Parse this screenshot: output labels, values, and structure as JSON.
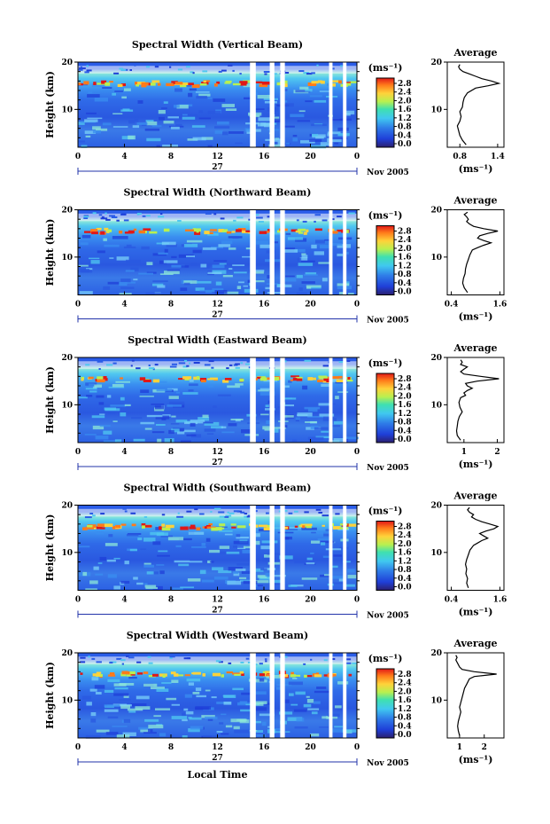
{
  "chart_data": [
    {
      "type": "heatmap",
      "title": "Spectral Width (Vertical Beam)",
      "ylabel": "Height (km)",
      "yticks": [
        "20",
        "10"
      ],
      "ylim": [
        2,
        20
      ],
      "xticks": [
        "0",
        "4",
        "8",
        "12",
        "16",
        "20",
        "0"
      ],
      "xlim": [
        0,
        24
      ],
      "day": "27",
      "date_label": "Nov 2005",
      "gaps": [
        [
          14.8,
          15.3
        ],
        [
          16.5,
          16.9
        ],
        [
          17.4,
          17.8
        ],
        [
          21.6,
          21.9
        ],
        [
          22.8,
          23.1
        ]
      ],
      "colorbar": {
        "label": "(ms⁻¹)",
        "ticks": [
          "2.8",
          "2.4",
          "2.0",
          "1.6",
          "1.2",
          "0.8",
          "0.4",
          "0.0"
        ]
      },
      "average": {
        "title": "Average",
        "xlabel": "(ms⁻¹)",
        "xticks": [
          "0.8",
          "1.4"
        ],
        "xtick_values": [
          0.8,
          1.4
        ],
        "xlim": [
          0.6,
          1.5
        ],
        "yticks": [
          "20",
          "10"
        ],
        "height": [
          2.5,
          3.5,
          4.5,
          5.5,
          6.5,
          7.5,
          8.5,
          9.5,
          10.5,
          11.5,
          12.5,
          13.5,
          14.5,
          15.0,
          15.5,
          16.0,
          16.5,
          17.0,
          17.5,
          18.0,
          18.5,
          19.0,
          19.5
        ],
        "value": [
          0.9,
          0.84,
          0.8,
          0.78,
          0.76,
          0.8,
          0.82,
          0.8,
          0.84,
          0.85,
          0.87,
          0.92,
          1.05,
          1.25,
          1.42,
          1.3,
          1.15,
          1.05,
          0.95,
          0.85,
          0.8,
          0.78,
          0.8
        ]
      }
    },
    {
      "type": "heatmap",
      "title": "Spectral Width (Northward Beam)",
      "ylabel": "Height (km)",
      "yticks": [
        "20",
        "10"
      ],
      "ylim": [
        2,
        20
      ],
      "xticks": [
        "0",
        "4",
        "8",
        "12",
        "16",
        "20",
        "0"
      ],
      "xlim": [
        0,
        24
      ],
      "day": "27",
      "date_label": "Nov 2005",
      "gaps": [
        [
          14.8,
          15.3
        ],
        [
          16.5,
          16.9
        ],
        [
          17.4,
          17.8
        ],
        [
          21.6,
          21.9
        ],
        [
          22.8,
          23.1
        ]
      ],
      "colorbar": {
        "label": "(ms⁻¹)",
        "ticks": [
          "2.8",
          "2.4",
          "2.0",
          "1.6",
          "1.2",
          "0.8",
          "0.4",
          "0.0"
        ]
      },
      "average": {
        "title": "Average",
        "xlabel": "(ms⁻¹)",
        "xticks": [
          "0.4",
          "1.6"
        ],
        "xtick_values": [
          0.4,
          1.6
        ],
        "xlim": [
          0.3,
          1.7
        ],
        "yticks": [
          "20",
          "10"
        ],
        "height": [
          2.5,
          3.5,
          4.5,
          5.5,
          6.5,
          7.5,
          8.5,
          9.5,
          10.5,
          11.5,
          12.0,
          12.5,
          13.0,
          13.5,
          14.0,
          14.5,
          15.0,
          15.5,
          16.0,
          16.5,
          17.0,
          17.5,
          18.0,
          18.5,
          19.0,
          19.5
        ],
        "value": [
          0.8,
          0.72,
          0.68,
          0.7,
          0.74,
          0.75,
          0.78,
          0.82,
          0.86,
          0.92,
          1.05,
          1.2,
          1.38,
          1.2,
          1.05,
          1.1,
          1.3,
          1.55,
          1.2,
          0.95,
          0.85,
          0.78,
          0.82,
          0.78,
          0.72,
          0.8
        ]
      }
    },
    {
      "type": "heatmap",
      "title": "Spectral Width (Eastward Beam)",
      "ylabel": "Height (km)",
      "yticks": [
        "20",
        "10"
      ],
      "ylim": [
        2,
        20
      ],
      "xticks": [
        "0",
        "4",
        "8",
        "12",
        "16",
        "20",
        "0"
      ],
      "xlim": [
        0,
        24
      ],
      "day": "27",
      "date_label": "Nov 2005",
      "gaps": [
        [
          14.8,
          15.3
        ],
        [
          16.5,
          16.9
        ],
        [
          17.4,
          17.8
        ],
        [
          21.6,
          21.9
        ],
        [
          22.8,
          23.1
        ]
      ],
      "colorbar": {
        "label": "(ms⁻¹)",
        "ticks": [
          "2.8",
          "2.4",
          "2.0",
          "1.6",
          "1.2",
          "0.8",
          "0.4",
          "0.0"
        ]
      },
      "average": {
        "title": "Average",
        "xlabel": "(ms⁻¹)",
        "xticks": [
          "1",
          "2"
        ],
        "xtick_values": [
          1,
          2
        ],
        "xlim": [
          0.5,
          2.2
        ],
        "yticks": [
          "20",
          "10"
        ],
        "height": [
          2.5,
          3.5,
          4.5,
          5.5,
          6.5,
          7.5,
          8.5,
          9.5,
          10.5,
          11.5,
          12.0,
          12.5,
          13.0,
          13.5,
          14.0,
          14.5,
          15.0,
          15.5,
          16.0,
          16.5,
          17.0,
          17.5,
          18.0,
          18.5,
          19.0,
          19.5
        ],
        "value": [
          0.9,
          0.8,
          0.78,
          0.8,
          0.82,
          0.86,
          0.95,
          0.88,
          0.85,
          0.9,
          1.05,
          1.0,
          1.1,
          1.25,
          1.1,
          1.05,
          1.4,
          2.05,
          1.5,
          1.0,
          0.9,
          1.0,
          1.1,
          0.9,
          0.95,
          0.9
        ]
      }
    },
    {
      "type": "heatmap",
      "title": "Spectral Width (Southward Beam)",
      "ylabel": "Height (km)",
      "yticks": [
        "20",
        "10"
      ],
      "ylim": [
        2,
        20
      ],
      "xticks": [
        "0",
        "4",
        "8",
        "12",
        "16",
        "20",
        "0"
      ],
      "xlim": [
        0,
        24
      ],
      "day": "27",
      "date_label": "Nov 2005",
      "gaps": [
        [
          14.8,
          15.3
        ],
        [
          16.5,
          16.9
        ],
        [
          17.4,
          17.8
        ],
        [
          21.6,
          21.9
        ],
        [
          22.8,
          23.1
        ]
      ],
      "colorbar": {
        "label": "(ms⁻¹)",
        "ticks": [
          "2.8",
          "2.4",
          "2.0",
          "1.6",
          "1.2",
          "0.8",
          "0.4",
          "0.0"
        ]
      },
      "average": {
        "title": "Average",
        "xlabel": "(ms⁻¹)",
        "xticks": [
          "0.4",
          "1.6"
        ],
        "xtick_values": [
          0.4,
          1.6
        ],
        "xlim": [
          0.3,
          1.7
        ],
        "yticks": [
          "20",
          "10"
        ],
        "height": [
          2.5,
          3.5,
          4.5,
          5.5,
          6.5,
          7.5,
          8.5,
          9.5,
          10.5,
          11.5,
          12.0,
          12.5,
          13.0,
          13.5,
          14.0,
          14.5,
          15.0,
          15.5,
          16.0,
          16.5,
          17.0,
          17.5,
          18.0,
          18.5,
          19.0,
          19.5
        ],
        "value": [
          0.82,
          0.78,
          0.8,
          0.76,
          0.78,
          0.75,
          0.78,
          0.82,
          0.86,
          0.95,
          1.05,
          1.15,
          1.3,
          1.2,
          1.1,
          1.25,
          1.45,
          1.55,
          1.35,
          1.15,
          1.0,
          0.9,
          0.95,
          0.85,
          0.8,
          0.85
        ]
      }
    },
    {
      "type": "heatmap",
      "title": "Spectral Width (Westward Beam)",
      "ylabel": "Height (km)",
      "yticks": [
        "20",
        "10"
      ],
      "ylim": [
        2,
        20
      ],
      "xticks": [
        "0",
        "4",
        "8",
        "12",
        "16",
        "20",
        "0"
      ],
      "xlim": [
        0,
        24
      ],
      "day": "27",
      "date_label": "Nov 2005",
      "xlabel": "Local Time",
      "gaps": [
        [
          14.8,
          15.3
        ],
        [
          16.5,
          16.9
        ],
        [
          17.4,
          17.8
        ],
        [
          21.6,
          21.9
        ],
        [
          22.8,
          23.1
        ]
      ],
      "colorbar": {
        "label": "(ms⁻¹)",
        "ticks": [
          "2.8",
          "2.4",
          "2.0",
          "1.6",
          "1.2",
          "0.8",
          "0.4",
          "0.0"
        ]
      },
      "average": {
        "title": "Average",
        "xlabel": "(ms⁻¹)",
        "xticks": [
          "1",
          "2"
        ],
        "xtick_values": [
          1,
          2
        ],
        "xlim": [
          0.5,
          2.8
        ],
        "yticks": [
          "20",
          "10"
        ],
        "height": [
          2.5,
          3.5,
          4.5,
          5.5,
          6.5,
          7.5,
          8.5,
          9.5,
          10.5,
          11.5,
          12.5,
          13.5,
          14.5,
          15.0,
          15.5,
          16.0,
          16.5,
          17.0,
          17.5,
          18.0,
          18.5,
          19.0,
          19.5
        ],
        "value": [
          1.0,
          0.95,
          0.92,
          0.95,
          1.0,
          1.05,
          1.0,
          1.05,
          1.1,
          1.15,
          1.2,
          1.3,
          1.4,
          1.6,
          2.5,
          1.6,
          1.1,
          1.0,
          0.95,
          0.9,
          0.85,
          0.9,
          0.85
        ]
      }
    }
  ]
}
